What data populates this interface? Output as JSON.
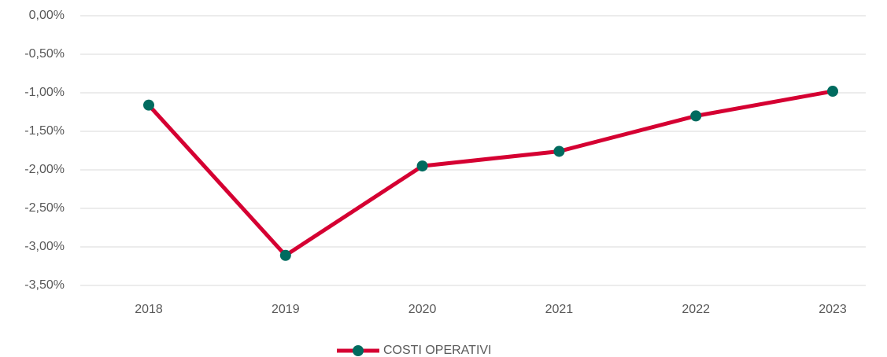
{
  "chart_data": {
    "type": "line",
    "categories": [
      "2018",
      "2019",
      "2020",
      "2021",
      "2022",
      "2023"
    ],
    "series": [
      {
        "name": "COSTI OPERATIVI",
        "color": "#d50032",
        "marker_color": "#006b5f",
        "values": [
          -1.16,
          -3.11,
          -1.95,
          -1.76,
          -1.3,
          -0.98
        ]
      }
    ],
    "ylim": [
      -3.5,
      0
    ],
    "yticks": [
      {
        "value": 0,
        "label": "0,00%"
      },
      {
        "value": -0.5,
        "label": "-0,50%"
      },
      {
        "value": -1,
        "label": "-1,00%"
      },
      {
        "value": -1.5,
        "label": "-1,50%"
      },
      {
        "value": -2,
        "label": "-2,00%"
      },
      {
        "value": -2.5,
        "label": "-2,50%"
      },
      {
        "value": -3,
        "label": "-3,00%"
      },
      {
        "value": -3.5,
        "label": "-3,50%"
      }
    ],
    "grid": true,
    "legend": "bottom"
  }
}
